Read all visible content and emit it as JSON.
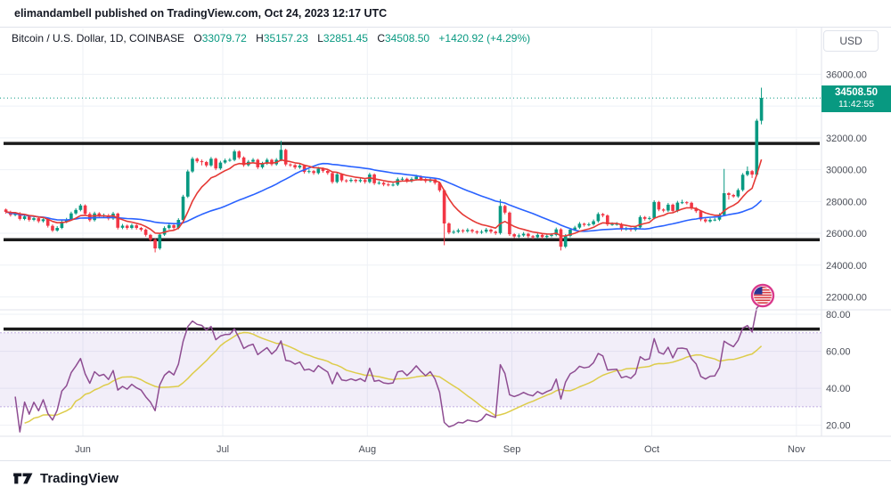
{
  "attribution": "elimandambell published on TradingView.com, Oct 24, 2023 12:17 UTC",
  "toolbar": {
    "currency_label": "USD"
  },
  "legend": {
    "title": "Bitcoin / U.S. Dollar, 1D, COINBASE",
    "open_label": "O",
    "open": "33079.72",
    "high_label": "H",
    "high": "35157.23",
    "low_label": "L",
    "low": "32851.45",
    "close_label": "C",
    "close": "34508.50",
    "change": "+1420.92 (+4.29%)"
  },
  "price_axis": {
    "ticks": [
      "36000.00",
      "34000.00",
      "32000.00",
      "30000.00",
      "28000.00",
      "26000.00",
      "24000.00",
      "22000.00"
    ],
    "last_price": "34508.50",
    "countdown": "11:42:55"
  },
  "rsi_axis": {
    "ticks": [
      "80.00",
      "60.00",
      "40.00",
      "20.00"
    ]
  },
  "footer": {
    "brand": "TradingView"
  },
  "colors": {
    "up": "#089981",
    "down": "#f23645",
    "ma_fast": "#e53935",
    "ma_slow": "#2962ff",
    "rsi": "#8e4d92",
    "rsi_ma": "#ddcc4a",
    "band_fill": "rgba(126,87,194,0.10)",
    "band_border": "rgba(126,87,194,0.45)",
    "grid": "#eef1f6",
    "separator": "#e0e3eb",
    "axis_text": "#4a4e58",
    "drawing": "#1b1b1b",
    "last_price": "#089981"
  },
  "chart_data": {
    "type": "candlestick",
    "title": "Bitcoin / U.S. Dollar, 1D, COINBASE",
    "interval": "1D",
    "ylim": [
      21300,
      37200
    ],
    "rsi_ylim": [
      15,
      80.5
    ],
    "total_slots": 175,
    "months": [
      {
        "label": "Jun",
        "index": 17
      },
      {
        "label": "Jul",
        "index": 47
      },
      {
        "label": "Aug",
        "index": 78
      },
      {
        "label": "Sep",
        "index": 109
      },
      {
        "label": "Oct",
        "index": 139
      },
      {
        "label": "Nov",
        "index": 170
      }
    ],
    "drawings": {
      "price_hlines": [
        31650,
        25600
      ],
      "rsi_hline": 72
    },
    "indicators": {
      "ma_fast": {
        "type": "EMA",
        "length": 9
      },
      "ma_slow": {
        "type": "SMA",
        "length": 30
      },
      "rsi": {
        "length": 14,
        "band": [
          30,
          70
        ]
      },
      "rsi_ma": {
        "length": 14
      }
    },
    "candles": [
      [
        27500,
        27560,
        27230,
        27350
      ],
      [
        27350,
        27420,
        27050,
        27150
      ],
      [
        27150,
        27340,
        27070,
        27260
      ],
      [
        27260,
        27330,
        26810,
        26900
      ],
      [
        26900,
        27160,
        26820,
        27060
      ],
      [
        27060,
        27130,
        26740,
        26850
      ],
      [
        26850,
        27030,
        26760,
        26950
      ],
      [
        26950,
        27000,
        26650,
        26760
      ],
      [
        26760,
        26940,
        26680,
        26880
      ],
      [
        26880,
        26930,
        26360,
        26470
      ],
      [
        26470,
        26560,
        26080,
        26180
      ],
      [
        26180,
        26450,
        26100,
        26340
      ],
      [
        26340,
        26840,
        26260,
        26730
      ],
      [
        26730,
        26970,
        26640,
        26860
      ],
      [
        26860,
        27360,
        26780,
        27250
      ],
      [
        27250,
        27580,
        27160,
        27470
      ],
      [
        27470,
        27850,
        27380,
        27750
      ],
      [
        27750,
        27820,
        27110,
        27220
      ],
      [
        27220,
        27330,
        26720,
        26830
      ],
      [
        26830,
        27360,
        26740,
        27250
      ],
      [
        27250,
        27330,
        26970,
        27080
      ],
      [
        27080,
        27240,
        26990,
        27130
      ],
      [
        27130,
        27220,
        26820,
        26930
      ],
      [
        26930,
        27350,
        26840,
        27240
      ],
      [
        27240,
        27300,
        26240,
        26350
      ],
      [
        26350,
        26590,
        26260,
        26480
      ],
      [
        26480,
        26550,
        26230,
        26340
      ],
      [
        26340,
        26610,
        26250,
        26500
      ],
      [
        26500,
        26570,
        26230,
        26340
      ],
      [
        26340,
        26400,
        26120,
        26230
      ],
      [
        26230,
        26300,
        25790,
        25900
      ],
      [
        25900,
        25960,
        25480,
        25600
      ],
      [
        25600,
        25680,
        24800,
        25050
      ],
      [
        25050,
        26030,
        24960,
        25920
      ],
      [
        25920,
        26440,
        25830,
        26330
      ],
      [
        26330,
        26620,
        26240,
        26510
      ],
      [
        26510,
        26580,
        26230,
        26340
      ],
      [
        26340,
        26950,
        26250,
        26840
      ],
      [
        26840,
        28420,
        26760,
        28310
      ],
      [
        28310,
        30000,
        28220,
        29890
      ],
      [
        29890,
        30800,
        29800,
        30690
      ],
      [
        30690,
        30760,
        30420,
        30530
      ],
      [
        30530,
        30640,
        30270,
        30480
      ],
      [
        30480,
        30550,
        30160,
        30270
      ],
      [
        30270,
        30800,
        30180,
        30690
      ],
      [
        30690,
        30760,
        29970,
        30080
      ],
      [
        30080,
        30560,
        29990,
        30450
      ],
      [
        30450,
        30700,
        30360,
        30590
      ],
      [
        30590,
        30730,
        30500,
        30620
      ],
      [
        30620,
        31260,
        30530,
        31150
      ],
      [
        31150,
        31220,
        30660,
        30770
      ],
      [
        30770,
        30840,
        30180,
        30290
      ],
      [
        30290,
        30610,
        30200,
        30500
      ],
      [
        30500,
        30730,
        30410,
        30620
      ],
      [
        30620,
        30690,
        30040,
        30150
      ],
      [
        30150,
        30500,
        30060,
        30390
      ],
      [
        30390,
        30730,
        30300,
        30620
      ],
      [
        30620,
        30690,
        30230,
        30340
      ],
      [
        30340,
        30730,
        30250,
        30620
      ],
      [
        30620,
        31820,
        30530,
        31250
      ],
      [
        31250,
        31320,
        30220,
        30330
      ],
      [
        30330,
        30400,
        30180,
        30290
      ],
      [
        30290,
        30360,
        30030,
        30140
      ],
      [
        30140,
        30360,
        30050,
        30250
      ],
      [
        30250,
        30320,
        29750,
        29860
      ],
      [
        29860,
        30020,
        29770,
        29910
      ],
      [
        29910,
        29980,
        29680,
        29790
      ],
      [
        29790,
        30180,
        29700,
        30070
      ],
      [
        30070,
        30140,
        29810,
        29920
      ],
      [
        29920,
        29990,
        29680,
        29790
      ],
      [
        29790,
        29860,
        29120,
        29230
      ],
      [
        29230,
        29820,
        29140,
        29710
      ],
      [
        29710,
        29780,
        29220,
        29330
      ],
      [
        29330,
        29400,
        29180,
        29290
      ],
      [
        29290,
        29470,
        29200,
        29360
      ],
      [
        29360,
        29430,
        29170,
        29280
      ],
      [
        29280,
        29460,
        29190,
        29350
      ],
      [
        29350,
        29420,
        29120,
        29230
      ],
      [
        29230,
        29810,
        29140,
        29700
      ],
      [
        29700,
        29770,
        29040,
        29150
      ],
      [
        29150,
        29290,
        29060,
        29180
      ],
      [
        29180,
        29250,
        28960,
        29070
      ],
      [
        29070,
        29180,
        28950,
        29040
      ],
      [
        29040,
        29170,
        28950,
        29060
      ],
      [
        29060,
        29510,
        28970,
        29400
      ],
      [
        29400,
        29540,
        29310,
        29430
      ],
      [
        29430,
        29500,
        29170,
        29280
      ],
      [
        29280,
        29520,
        29190,
        29410
      ],
      [
        29410,
        29680,
        29320,
        29570
      ],
      [
        29570,
        29640,
        29300,
        29410
      ],
      [
        29410,
        29480,
        29170,
        29280
      ],
      [
        29280,
        29500,
        29190,
        29390
      ],
      [
        29390,
        29460,
        29060,
        29170
      ],
      [
        29170,
        29240,
        28590,
        28700
      ],
      [
        28700,
        28770,
        25250,
        26620
      ],
      [
        26620,
        26690,
        25940,
        26050
      ],
      [
        26050,
        26210,
        25960,
        26100
      ],
      [
        26100,
        26300,
        26010,
        26190
      ],
      [
        26190,
        26260,
        26020,
        26130
      ],
      [
        26130,
        26320,
        26040,
        26210
      ],
      [
        26210,
        26280,
        26010,
        26120
      ],
      [
        26120,
        26190,
        25940,
        26050
      ],
      [
        26050,
        26210,
        25960,
        26100
      ],
      [
        26100,
        26340,
        26010,
        26230
      ],
      [
        26230,
        26300,
        25990,
        26100
      ],
      [
        26100,
        26170,
        25900,
        26010
      ],
      [
        26010,
        28140,
        25920,
        27720
      ],
      [
        27720,
        27790,
        27190,
        27300
      ],
      [
        27300,
        27370,
        25830,
        25940
      ],
      [
        25940,
        26010,
        25690,
        25800
      ],
      [
        25800,
        25980,
        25710,
        25870
      ],
      [
        25870,
        26080,
        25780,
        25970
      ],
      [
        25970,
        26040,
        25710,
        25820
      ],
      [
        25820,
        25890,
        25640,
        25750
      ],
      [
        25750,
        26010,
        25660,
        25900
      ],
      [
        25900,
        25970,
        25650,
        25760
      ],
      [
        25760,
        25950,
        25670,
        25840
      ],
      [
        25840,
        26010,
        25750,
        25900
      ],
      [
        25900,
        26360,
        25810,
        26250
      ],
      [
        26250,
        26320,
        24920,
        25160
      ],
      [
        25160,
        25950,
        25070,
        25840
      ],
      [
        25840,
        26340,
        25750,
        26230
      ],
      [
        26230,
        26470,
        26140,
        26360
      ],
      [
        26360,
        26710,
        26270,
        26600
      ],
      [
        26600,
        26670,
        26420,
        26530
      ],
      [
        26530,
        26680,
        26440,
        26570
      ],
      [
        26570,
        26870,
        26480,
        26760
      ],
      [
        26760,
        27320,
        26670,
        27210
      ],
      [
        27210,
        27280,
        27010,
        27120
      ],
      [
        27120,
        27190,
        26450,
        26560
      ],
      [
        26560,
        26690,
        26470,
        26580
      ],
      [
        26580,
        26700,
        26480,
        26590
      ],
      [
        26590,
        26660,
        26140,
        26250
      ],
      [
        26250,
        26410,
        26160,
        26300
      ],
      [
        26300,
        26370,
        26110,
        26220
      ],
      [
        26220,
        26480,
        26130,
        26370
      ],
      [
        26370,
        27130,
        26280,
        27020
      ],
      [
        27020,
        27090,
        26800,
        26910
      ],
      [
        26910,
        27070,
        26820,
        26960
      ],
      [
        26960,
        28080,
        26870,
        27970
      ],
      [
        27970,
        28040,
        27390,
        27500
      ],
      [
        27500,
        27570,
        27320,
        27430
      ],
      [
        27430,
        27910,
        27340,
        27800
      ],
      [
        27800,
        27870,
        27300,
        27410
      ],
      [
        27410,
        28040,
        27320,
        27930
      ],
      [
        27930,
        28110,
        27840,
        27950
      ],
      [
        27950,
        28020,
        27810,
        27920
      ],
      [
        27920,
        27990,
        27470,
        27580
      ],
      [
        27580,
        27650,
        27280,
        27390
      ],
      [
        27390,
        27460,
        26760,
        26870
      ],
      [
        26870,
        26980,
        26660,
        26750
      ],
      [
        26750,
        26960,
        26660,
        26850
      ],
      [
        26850,
        26970,
        26760,
        26860
      ],
      [
        26860,
        27270,
        26770,
        27160
      ],
      [
        27160,
        30050,
        27070,
        28520
      ],
      [
        28520,
        28590,
        28120,
        28410
      ],
      [
        28410,
        28480,
        28230,
        28320
      ],
      [
        28320,
        28830,
        28230,
        28720
      ],
      [
        28720,
        29790,
        28630,
        29680
      ],
      [
        29680,
        30200,
        29590,
        29910
      ],
      [
        29910,
        29980,
        29480,
        29690
      ],
      [
        29690,
        33200,
        29600,
        33080
      ],
      [
        33079.72,
        35157.23,
        32851.45,
        34508.5
      ]
    ]
  }
}
